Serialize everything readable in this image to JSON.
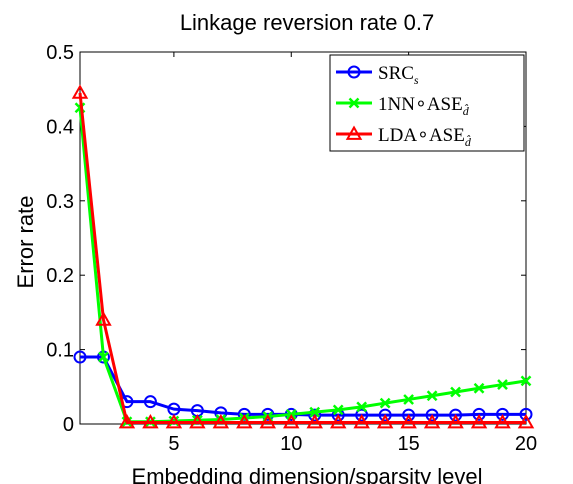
{
  "chart_data": {
    "type": "line",
    "title": "Linkage reversion rate 0.7",
    "xlabel": "Embedding dimension/sparsity level",
    "ylabel": "Error rate",
    "xlim": [
      1,
      20
    ],
    "ylim": [
      0,
      0.5
    ],
    "xticks": [
      "5",
      "10",
      "15",
      "20"
    ],
    "yticks": [
      "0",
      "0.1",
      "0.2",
      "0.3",
      "0.4",
      "0.5"
    ],
    "grid": false,
    "legend_position": "top-right",
    "x": [
      1,
      2,
      3,
      4,
      5,
      6,
      7,
      8,
      9,
      10,
      11,
      12,
      13,
      14,
      15,
      16,
      17,
      18,
      19,
      20
    ],
    "series": [
      {
        "name": "SRC",
        "name_subscript": "s",
        "color": "#0000ff",
        "marker": "circle",
        "values": [
          0.09,
          0.09,
          0.03,
          0.03,
          0.02,
          0.018,
          0.015,
          0.013,
          0.013,
          0.013,
          0.012,
          0.012,
          0.012,
          0.012,
          0.012,
          0.012,
          0.012,
          0.013,
          0.013,
          0.013
        ]
      },
      {
        "name": "1NN∘ASE",
        "name_subscript": "d̂",
        "color": "#00ff00",
        "marker": "x",
        "values": [
          0.425,
          0.09,
          0.003,
          0.003,
          0.004,
          0.005,
          0.006,
          0.008,
          0.01,
          0.013,
          0.016,
          0.019,
          0.023,
          0.028,
          0.033,
          0.038,
          0.043,
          0.048,
          0.053,
          0.058
        ]
      },
      {
        "name": "LDA∘ASE",
        "name_subscript": "d̂",
        "color": "#ff0000",
        "marker": "triangle",
        "values": [
          0.445,
          0.14,
          0.002,
          0.002,
          0.002,
          0.002,
          0.002,
          0.002,
          0.002,
          0.002,
          0.002,
          0.002,
          0.002,
          0.002,
          0.002,
          0.002,
          0.002,
          0.002,
          0.002,
          0.002
        ]
      }
    ]
  }
}
